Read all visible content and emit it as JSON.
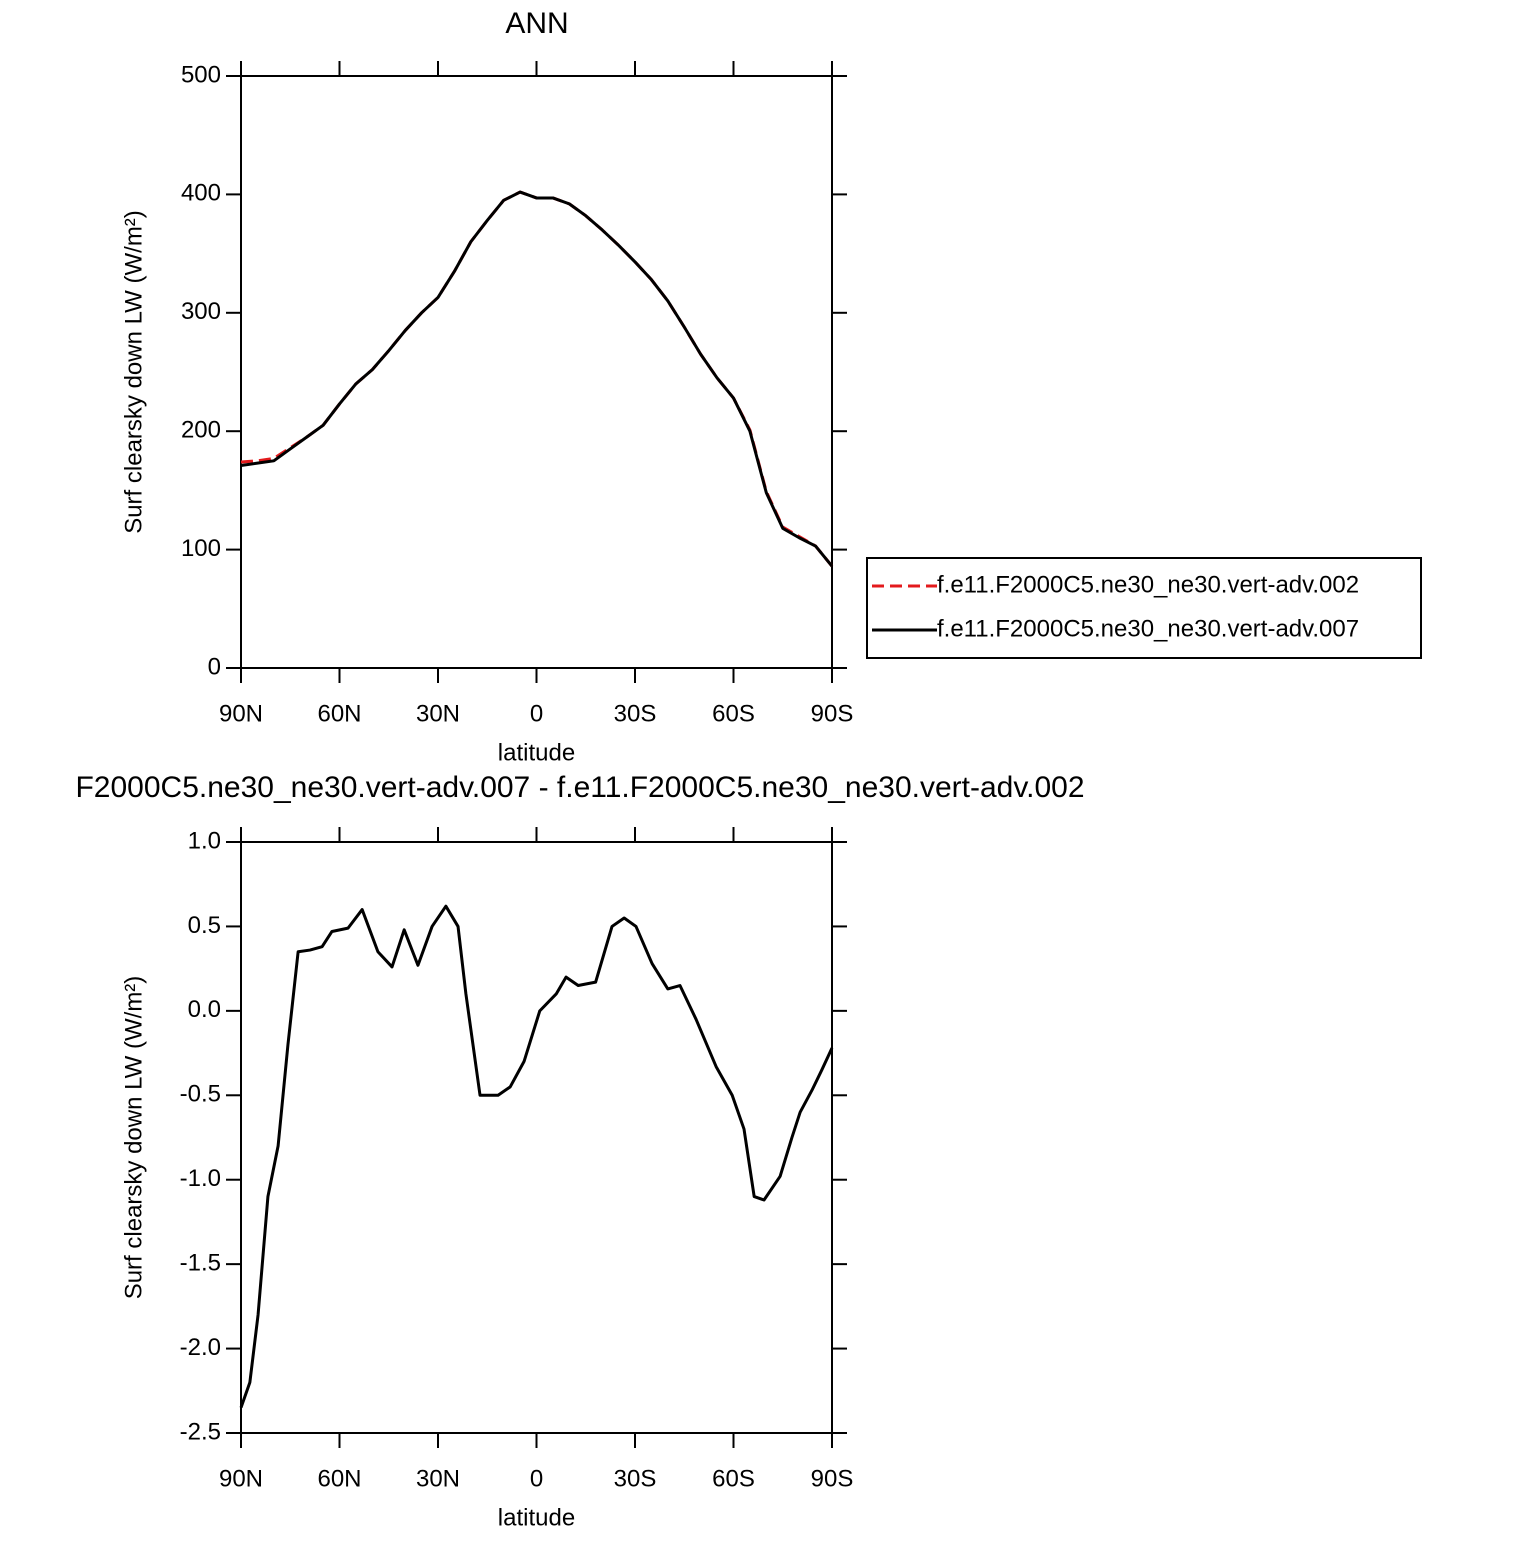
{
  "chart_data": [
    {
      "type": "line",
      "title": "ANN",
      "x_label": "latitude",
      "y_label": "Surf clearsky down LW (W/m²)",
      "x": [
        90,
        85,
        80,
        75,
        70,
        65,
        60,
        55,
        50,
        45,
        40,
        35,
        30,
        25,
        20,
        15,
        10,
        5,
        0,
        -5,
        -10,
        -15,
        -20,
        -25,
        -30,
        -35,
        -40,
        -45,
        -50,
        -55,
        -60,
        -65,
        -70,
        -75,
        -80,
        -85,
        -90
      ],
      "series": [
        {
          "name": "f.e11.F2000C5.ne30_ne30.vert-adv.002",
          "color": "#e31a1c",
          "linestyle": "dashed",
          "values": [
            174,
            175,
            177,
            186,
            195,
            205,
            223,
            240,
            252,
            268,
            285,
            300,
            313,
            335,
            360,
            378,
            395,
            402,
            397,
            397,
            392,
            382,
            370,
            357,
            343,
            328,
            310,
            288,
            265,
            245,
            228,
            201,
            149,
            119,
            111,
            103,
            86
          ]
        },
        {
          "name": "f.e11.F2000C5.ne30_ne30.vert-adv.007",
          "color": "#000000",
          "linestyle": "solid",
          "values": [
            171,
            173,
            175,
            185,
            195,
            205,
            223,
            240,
            252,
            268,
            285,
            300,
            313,
            335,
            360,
            378,
            395,
            402,
            397,
            397,
            392,
            382,
            370,
            357,
            343,
            328,
            310,
            288,
            265,
            245,
            228,
            200,
            148,
            118,
            110,
            103,
            86
          ]
        }
      ],
      "xlim": [
        90,
        -90
      ],
      "xticks": [
        {
          "value": 90,
          "label": "90N"
        },
        {
          "value": 60,
          "label": "60N"
        },
        {
          "value": 30,
          "label": "30N"
        },
        0,
        {
          "value": -30,
          "label": "30S"
        },
        {
          "value": -60,
          "label": "60S"
        },
        {
          "value": -90,
          "label": "90S"
        }
      ],
      "ylim": [
        0,
        500
      ],
      "yticks": [
        0,
        100,
        200,
        300,
        400,
        500
      ],
      "legend": "right"
    },
    {
      "type": "line",
      "title": "F2000C5.ne30_ne30.vert-adv.007 - f.e11.F2000C5.ne30_ne30.vert-adv.002",
      "x_label": "latitude",
      "y_label": "Surf clearsky down LW (W/m²)",
      "x": [
        90,
        87.3,
        84.8,
        81.8,
        78.7,
        75.7,
        72.6,
        69,
        65.3,
        62.3,
        57.4,
        53.1,
        48.3,
        44,
        40.3,
        36.1,
        31.8,
        27.6,
        23.9,
        21.5,
        17.2,
        11.7,
        8,
        3.8,
        -1,
        -6,
        -9,
        -12.7,
        -18,
        -23,
        -26.7,
        -30.3,
        -35.2,
        -40,
        -43.7,
        -48.6,
        -54.7,
        -59.6,
        -63.2,
        -66.3,
        -69.3,
        -74.2,
        -77.8,
        -80.3,
        -83.9,
        -86.9,
        -90
      ],
      "values": [
        -2.35,
        -2.2,
        -1.8,
        -1.1,
        -0.8,
        -0.2,
        0.35,
        0.36,
        0.38,
        0.47,
        0.49,
        0.6,
        0.35,
        0.26,
        0.48,
        0.27,
        0.5,
        0.62,
        0.5,
        0.1,
        -0.5,
        -0.5,
        -0.45,
        -0.3,
        0.0,
        0.1,
        0.2,
        0.15,
        0.17,
        0.5,
        0.55,
        0.5,
        0.28,
        0.13,
        0.15,
        -0.05,
        -0.33,
        -0.5,
        -0.7,
        -1.1,
        -1.12,
        -0.98,
        -0.75,
        -0.6,
        -0.47,
        -0.35,
        -0.22
      ],
      "color": "#000000",
      "xlim": [
        90,
        -90
      ],
      "xticks": [
        {
          "value": 90,
          "label": "90N"
        },
        {
          "value": 60,
          "label": "60N"
        },
        {
          "value": 30,
          "label": "30N"
        },
        0,
        {
          "value": -30,
          "label": "30S"
        },
        {
          "value": -60,
          "label": "60S"
        },
        {
          "value": -90,
          "label": "90S"
        }
      ],
      "ylim": [
        -2.5,
        1.0
      ],
      "yticks": [
        {
          "value": 1.0,
          "label": "1.0"
        },
        0.5,
        {
          "value": 0.0,
          "label": "0.0"
        },
        -0.5,
        {
          "value": -1.0,
          "label": "-1.0"
        },
        -1.5,
        {
          "value": -2.0,
          "label": "-2.0"
        },
        -2.5
      ]
    }
  ]
}
